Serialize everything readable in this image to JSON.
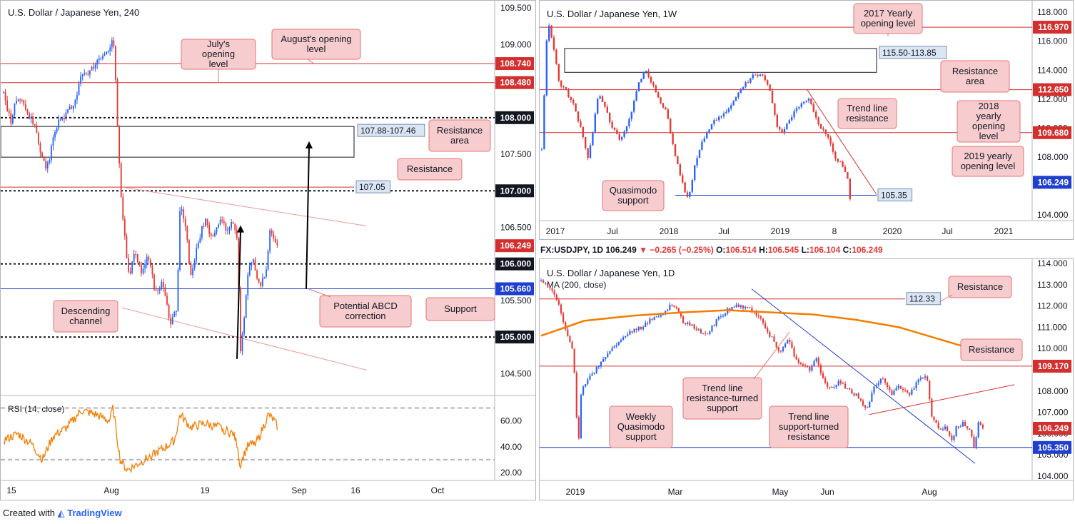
{
  "footer": {
    "created_with": "Created with",
    "brand": "TradingView"
  },
  "colors": {
    "up": "#2962ff",
    "down": "#e53935",
    "red_level": "#d32f2f",
    "blue_level": "#1e3fcf",
    "note_bg": "#f6cccf",
    "note_border": "#e57373",
    "ma": "#f57c00",
    "rsi": "#f57c00"
  },
  "h1d": {
    "symbol": "FX:USDJPY, 1D",
    "last": "106.249",
    "arrow": "▼",
    "change": "−0.265 (−0.25%)",
    "o_label": "O:",
    "o": "106.514",
    "h_label": "H:",
    "h": "106.545",
    "l_label": "L:",
    "l": "106.104",
    "c_label": "C:",
    "c": "106.249"
  },
  "chart_data": [
    {
      "id": "h4",
      "type": "candlestick",
      "title": "U.S. Dollar / Japanese Yen, 240",
      "ylim": [
        104.2,
        109.6
      ],
      "yticks": [
        "109.500",
        "109.000",
        "108.500",
        "108.000",
        "107.500",
        "107.000",
        "106.500",
        "106.000",
        "105.500",
        "105.000",
        "104.500"
      ],
      "ytick_values": [
        109.5,
        109.0,
        108.5,
        108.0,
        107.5,
        107.0,
        106.5,
        106.0,
        105.5,
        105.0,
        104.5
      ],
      "xticks": [
        "15",
        "Aug",
        "19",
        "Sep",
        "16",
        "Oct"
      ],
      "path": [
        [
          0,
          108.35
        ],
        [
          10,
          107.95
        ],
        [
          20,
          108.3
        ],
        [
          30,
          108.15
        ],
        [
          45,
          107.85
        ],
        [
          60,
          107.25
        ],
        [
          75,
          107.9
        ],
        [
          90,
          108.05
        ],
        [
          100,
          108.2
        ],
        [
          110,
          108.55
        ],
        [
          120,
          108.6
        ],
        [
          135,
          108.8
        ],
        [
          150,
          108.9
        ],
        [
          155,
          109.2
        ],
        [
          160,
          108.2
        ],
        [
          163,
          107.5
        ],
        [
          167,
          106.8
        ],
        [
          172,
          106.3
        ],
        [
          178,
          105.8
        ],
        [
          185,
          106.2
        ],
        [
          195,
          105.9
        ],
        [
          205,
          106.1
        ],
        [
          215,
          105.6
        ],
        [
          225,
          105.75
        ],
        [
          235,
          105.2
        ],
        [
          242,
          105.3
        ],
        [
          245,
          105.4
        ],
        [
          250,
          106.8
        ],
        [
          258,
          106.5
        ],
        [
          265,
          105.8
        ],
        [
          275,
          106.3
        ],
        [
          285,
          106.6
        ],
        [
          295,
          106.3
        ],
        [
          305,
          106.6
        ],
        [
          315,
          106.5
        ],
        [
          325,
          106.55
        ],
        [
          332,
          106.3
        ],
        [
          334,
          104.75
        ],
        [
          338,
          105.0
        ],
        [
          345,
          105.8
        ],
        [
          352,
          106.1
        ],
        [
          360,
          105.7
        ],
        [
          370,
          105.8
        ],
        [
          378,
          106.5
        ],
        [
          383,
          106.3
        ],
        [
          388,
          106.25
        ]
      ],
      "levels": [
        {
          "value": 108.74,
          "label": "108.740",
          "kind": "red"
        },
        {
          "value": 108.48,
          "label": "108.480",
          "kind": "red"
        },
        {
          "value": 108.0,
          "label": "108.000",
          "kind": "dotted"
        },
        {
          "value": 107.0,
          "label": "107.000",
          "kind": "dotted"
        },
        {
          "value": 106.0,
          "label": "106.000",
          "kind": "dotted"
        },
        {
          "value": 105.66,
          "label": "105.660",
          "kind": "blue"
        },
        {
          "value": 105.0,
          "label": "105.000",
          "kind": "dotted"
        }
      ],
      "last_price": {
        "value": 106.249,
        "label": "106.249"
      },
      "resistance_line": {
        "value": 107.05,
        "label": "107.05"
      },
      "zone": {
        "label": "107.88-107.46",
        "top": 107.88,
        "bottom": 107.46
      },
      "annotations": [
        "July's opening level",
        "August's opening level",
        "Resistance area",
        "Resistance",
        "Potential ABCD correction",
        "Support",
        "Descending channel"
      ],
      "rsi": {
        "label": "RSI (14, close)",
        "ylim": [
          15,
          78
        ],
        "yticks": [
          "60.00",
          "40.00",
          "20.00"
        ],
        "ytick_values": [
          60,
          40,
          20
        ],
        "bands": [
          70,
          30
        ],
        "path": [
          [
            0,
            45
          ],
          [
            20,
            50
          ],
          [
            40,
            42
          ],
          [
            55,
            30
          ],
          [
            70,
            48
          ],
          [
            90,
            55
          ],
          [
            110,
            68
          ],
          [
            130,
            65
          ],
          [
            150,
            60
          ],
          [
            155,
            70
          ],
          [
            165,
            30
          ],
          [
            175,
            22
          ],
          [
            185,
            25
          ],
          [
            200,
            30
          ],
          [
            215,
            35
          ],
          [
            230,
            40
          ],
          [
            242,
            45
          ],
          [
            250,
            65
          ],
          [
            265,
            55
          ],
          [
            285,
            58
          ],
          [
            305,
            55
          ],
          [
            325,
            50
          ],
          [
            332,
            40
          ],
          [
            334,
            25
          ],
          [
            345,
            40
          ],
          [
            360,
            45
          ],
          [
            375,
            65
          ],
          [
            383,
            60
          ],
          [
            388,
            55
          ]
        ]
      }
    },
    {
      "id": "w1",
      "type": "candlestick",
      "title": "U.S. Dollar / Japanese Yen, 1W",
      "ylim": [
        103.6,
        118.8
      ],
      "yticks": [
        "118.000",
        "116.000",
        "114.000",
        "112.000",
        "110.000",
        "108.000",
        "106.000",
        "104.000"
      ],
      "ytick_values": [
        118,
        116,
        114,
        112,
        110,
        108,
        106,
        104
      ],
      "xticks": [
        "2017",
        "Jul",
        "2018",
        "Jul",
        "2019",
        "8",
        "2020",
        "Jul",
        "2021"
      ],
      "path": [
        [
          0,
          108.5
        ],
        [
          8,
          117.5
        ],
        [
          15,
          116.0
        ],
        [
          25,
          113.0
        ],
        [
          35,
          112.5
        ],
        [
          45,
          111.5
        ],
        [
          55,
          110.0
        ],
        [
          65,
          107.8
        ],
        [
          80,
          112.5
        ],
        [
          95,
          110.5
        ],
        [
          110,
          109.0
        ],
        [
          125,
          111.0
        ],
        [
          135,
          113.0
        ],
        [
          145,
          114.0
        ],
        [
          160,
          112.5
        ],
        [
          175,
          111.0
        ],
        [
          185,
          108.5
        ],
        [
          195,
          106.5
        ],
        [
          205,
          105.0
        ],
        [
          215,
          107.5
        ],
        [
          225,
          109.0
        ],
        [
          240,
          110.5
        ],
        [
          255,
          111.0
        ],
        [
          270,
          112.0
        ],
        [
          285,
          113.0
        ],
        [
          300,
          113.8
        ],
        [
          310,
          113.5
        ],
        [
          320,
          112.5
        ],
        [
          330,
          110.0
        ],
        [
          338,
          109.5
        ],
        [
          345,
          110.5
        ],
        [
          360,
          111.5
        ],
        [
          375,
          112.0
        ],
        [
          385,
          110.5
        ],
        [
          400,
          109.5
        ],
        [
          410,
          108.0
        ],
        [
          420,
          107.5
        ],
        [
          428,
          106.5
        ],
        [
          432,
          105.0
        ],
        [
          434,
          106.3
        ]
      ],
      "levels": [
        {
          "value": 116.97,
          "label": "116.970",
          "kind": "red"
        },
        {
          "value": 112.65,
          "label": "112.650",
          "kind": "red"
        },
        {
          "value": 109.68,
          "label": "109.680",
          "kind": "red"
        },
        {
          "value": 105.35,
          "label": "105.35",
          "kind": "blue"
        }
      ],
      "last_price": {
        "value": 106.249,
        "label": "106.249"
      },
      "zone": {
        "label": "115.50-113.85",
        "top": 115.5,
        "bottom": 113.85
      },
      "annotations": [
        "2017 Yearly opening level",
        "Resistance area",
        "Trend line resistance",
        "2018 yearly opening level",
        "2019 yearly opening level",
        "Quasimodo support"
      ]
    },
    {
      "id": "d1",
      "type": "candlestick",
      "title": "U.S. Dollar / Japanese Yen, 1D",
      "subtitle": "MA (200, close)",
      "ylim": [
        103.8,
        114.2
      ],
      "yticks": [
        "114.000",
        "113.000",
        "112.000",
        "111.000",
        "110.000",
        "109.000",
        "108.000",
        "107.000",
        "106.000",
        "105.000",
        "104.000"
      ],
      "ytick_values": [
        114,
        113,
        112,
        111,
        110,
        109,
        108,
        107,
        106,
        105,
        104
      ],
      "xticks": [
        "2019",
        "Mar",
        "May",
        "Jun",
        "Aug"
      ],
      "path": [
        [
          0,
          113.2
        ],
        [
          15,
          112.8
        ],
        [
          25,
          112.0
        ],
        [
          35,
          110.8
        ],
        [
          45,
          109.8
        ],
        [
          52,
          105.3
        ],
        [
          56,
          108.0
        ],
        [
          65,
          108.5
        ],
        [
          80,
          109.2
        ],
        [
          95,
          109.8
        ],
        [
          110,
          110.4
        ],
        [
          125,
          110.8
        ],
        [
          140,
          111.0
        ],
        [
          155,
          111.4
        ],
        [
          170,
          111.6
        ],
        [
          180,
          112.0
        ],
        [
          190,
          111.8
        ],
        [
          200,
          111.2
        ],
        [
          215,
          111.0
        ],
        [
          230,
          110.6
        ],
        [
          245,
          111.3
        ],
        [
          260,
          111.8
        ],
        [
          275,
          112.0
        ],
        [
          290,
          111.9
        ],
        [
          305,
          111.5
        ],
        [
          320,
          110.6
        ],
        [
          335,
          109.8
        ],
        [
          345,
          110.5
        ],
        [
          355,
          109.5
        ],
        [
          365,
          109.3
        ],
        [
          375,
          109.0
        ],
        [
          385,
          109.6
        ],
        [
          395,
          108.4
        ],
        [
          405,
          108.1
        ],
        [
          415,
          108.4
        ],
        [
          425,
          108.2
        ],
        [
          440,
          107.8
        ],
        [
          455,
          107.2
        ],
        [
          465,
          108.2
        ],
        [
          475,
          108.6
        ],
        [
          490,
          107.9
        ],
        [
          500,
          108.2
        ],
        [
          515,
          107.8
        ],
        [
          525,
          108.5
        ],
        [
          535,
          108.7
        ],
        [
          540,
          108.4
        ],
        [
          545,
          106.9
        ],
        [
          555,
          106.2
        ],
        [
          565,
          106.3
        ],
        [
          575,
          105.6
        ],
        [
          580,
          106.3
        ],
        [
          590,
          106.5
        ],
        [
          600,
          106.1
        ],
        [
          605,
          105.2
        ],
        [
          610,
          106.5
        ],
        [
          620,
          106.25
        ]
      ],
      "ma_path": [
        [
          0,
          110.6
        ],
        [
          60,
          111.3
        ],
        [
          130,
          111.55
        ],
        [
          200,
          111.7
        ],
        [
          260,
          111.8
        ],
        [
          320,
          111.7
        ],
        [
          380,
          111.6
        ],
        [
          440,
          111.35
        ],
        [
          500,
          111.0
        ],
        [
          560,
          110.4
        ],
        [
          620,
          109.8
        ]
      ],
      "levels": [
        {
          "value": 112.33,
          "label": "112.33",
          "kind": "red"
        },
        {
          "value": 109.17,
          "label": "109.170",
          "kind": "red"
        },
        {
          "value": 105.35,
          "label": "105.350",
          "kind": "blue"
        }
      ],
      "last_price": {
        "value": 106.249,
        "label": "106.249"
      },
      "annotations": [
        "Resistance",
        "Resistance",
        "Trend line resistance-turned support",
        "Weekly Quasimodo support",
        "Trend line support-turned resistance"
      ]
    }
  ],
  "notes": {
    "h4": {
      "july": "July's opening level",
      "august": "August's opening level",
      "res_area": "Resistance area",
      "resistance": "Resistance",
      "abcd": "Potential ABCD correction",
      "support": "Support",
      "channel": "Descending channel"
    },
    "w1": {
      "yearly2017": "2017 Yearly opening level",
      "res_area": "Resistance area",
      "trendline": "Trend line resistance",
      "yearly2018": "2018 yearly opening level",
      "yearly2019": "2019 yearly opening level",
      "quasimodo": "Quasimodo support"
    },
    "d1": {
      "resistance_top": "Resistance",
      "resistance_mid": "Resistance",
      "tl_turned_support": "Trend line resistance-turned support",
      "weekly_quasimodo": "Weekly Quasimodo support",
      "tl_turned_resistance": "Trend line support-turned resistance"
    }
  }
}
